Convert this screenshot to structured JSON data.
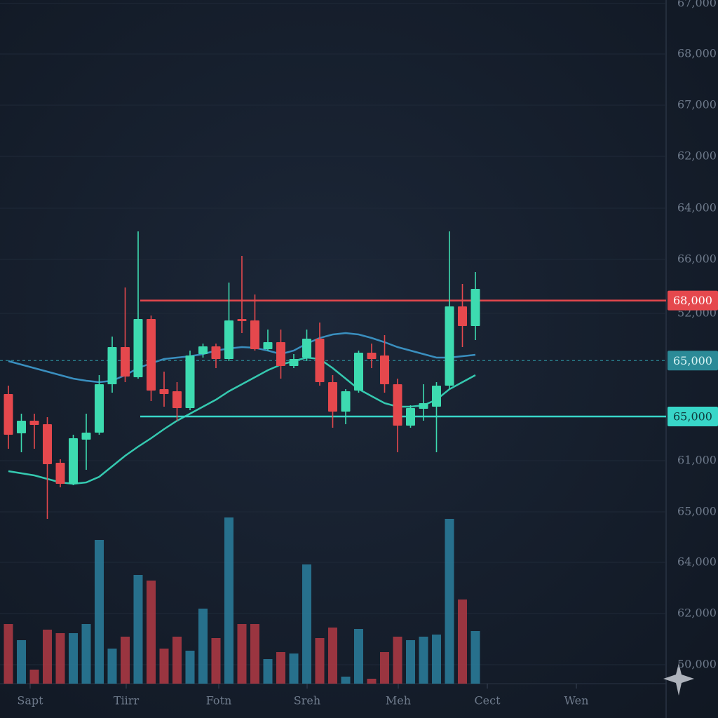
{
  "chart_data": {
    "type": "candlestick",
    "ylim": [
      48875,
      83000
    ],
    "yaxis_labels": [
      "67,000",
      "68,000",
      "67,000",
      "62,000",
      "64,000",
      "66,000",
      "52,000",
      "61,000",
      "65,000",
      "64,000",
      "62,000",
      "50,000"
    ],
    "x_labels": [
      "Sapt",
      "Tiirr",
      "Fotn",
      "Sreh",
      "Meh",
      "Cect",
      "Wen"
    ],
    "up_color": "#3ddbb0",
    "down_color": "#e5484d",
    "candles": {
      "open": [
        63330,
        61370,
        62000,
        61825,
        59900,
        58850,
        61055,
        61405,
        63820,
        65675,
        64170,
        67075,
        63575,
        63470,
        62630,
        65325,
        65710,
        65080,
        67075,
        67005,
        65570,
        65920,
        64730,
        65150,
        66095,
        63925,
        62455,
        63505,
        65395,
        65255,
        63820,
        61755,
        62595,
        62700,
        63750,
        67705,
        66725
      ],
      "high": [
        63750,
        62350,
        62350,
        62175,
        60075,
        61300,
        62350,
        64275,
        66200,
        68650,
        71450,
        67250,
        64450,
        63925,
        65500,
        65850,
        65850,
        68895,
        70225,
        68300,
        66550,
        66550,
        65325,
        66550,
        66900,
        64275,
        63575,
        65500,
        65850,
        66270,
        64100,
        62770,
        63820,
        63925,
        71450,
        68825,
        69420
      ],
      "low": [
        60600,
        60425,
        60600,
        57100,
        58675,
        58780,
        59550,
        61300,
        63400,
        63925,
        64100,
        62980,
        62700,
        62000,
        62525,
        65150,
        64625,
        64975,
        66375,
        65500,
        65500,
        64100,
        64625,
        64975,
        63750,
        61650,
        61825,
        63400,
        64625,
        63400,
        60425,
        61650,
        62000,
        60425,
        63575,
        65675,
        66025
      ],
      "close": [
        61300,
        62000,
        61790,
        59830,
        58850,
        61125,
        61405,
        63820,
        65675,
        64205,
        67075,
        63505,
        63330,
        62630,
        65255,
        65710,
        65080,
        67005,
        66970,
        65570,
        65920,
        64730,
        65080,
        66095,
        63925,
        62455,
        63470,
        65395,
        65080,
        63820,
        61755,
        62630,
        62875,
        63750,
        67705,
        66725,
        68580
      ]
    },
    "volume": [
      85,
      62,
      20,
      77,
      72,
      72,
      85,
      205,
      50,
      67,
      155,
      147,
      50,
      67,
      47,
      107,
      65,
      237,
      85,
      85,
      35,
      45,
      43,
      170,
      65,
      80,
      10,
      78,
      7,
      45,
      67,
      62,
      67,
      70,
      235,
      120,
      75
    ],
    "volume_up_color": "#2a7f9e",
    "volume_down_color": "#b23a44",
    "series": [
      {
        "color": "#3a8fbf",
        "values": [
          64975,
          64800,
          64625,
          64450,
          64275,
          64100,
          63995,
          63925,
          63995,
          64275,
          64625,
          64870,
          65080,
          65150,
          65220,
          65325,
          65500,
          65605,
          65675,
          65640,
          65500,
          65325,
          65500,
          65850,
          66130,
          66305,
          66375,
          66305,
          66130,
          65920,
          65675,
          65500,
          65325,
          65150,
          65150,
          65220,
          65290
        ]
      },
      {
        "color": "#35c9b0",
        "values": [
          59480,
          59375,
          59270,
          59095,
          58920,
          58850,
          58920,
          59200,
          59725,
          60250,
          60705,
          61125,
          61580,
          62000,
          62350,
          62700,
          63050,
          63470,
          63820,
          64170,
          64520,
          64800,
          64975,
          65150,
          65080,
          64625,
          64100,
          63575,
          63225,
          62875,
          62700,
          62700,
          62770,
          63050,
          63575,
          63925,
          64275
        ]
      }
    ],
    "levels": [
      {
        "value": 68000,
        "label": "68,000",
        "color": "#e5484d",
        "style": "solid"
      },
      {
        "value": 65000,
        "label": "65,000",
        "color": "#2b8a97",
        "style": "dashed"
      }
    ],
    "tag": {
      "label": "65,000",
      "color": "#38d6c8"
    }
  }
}
